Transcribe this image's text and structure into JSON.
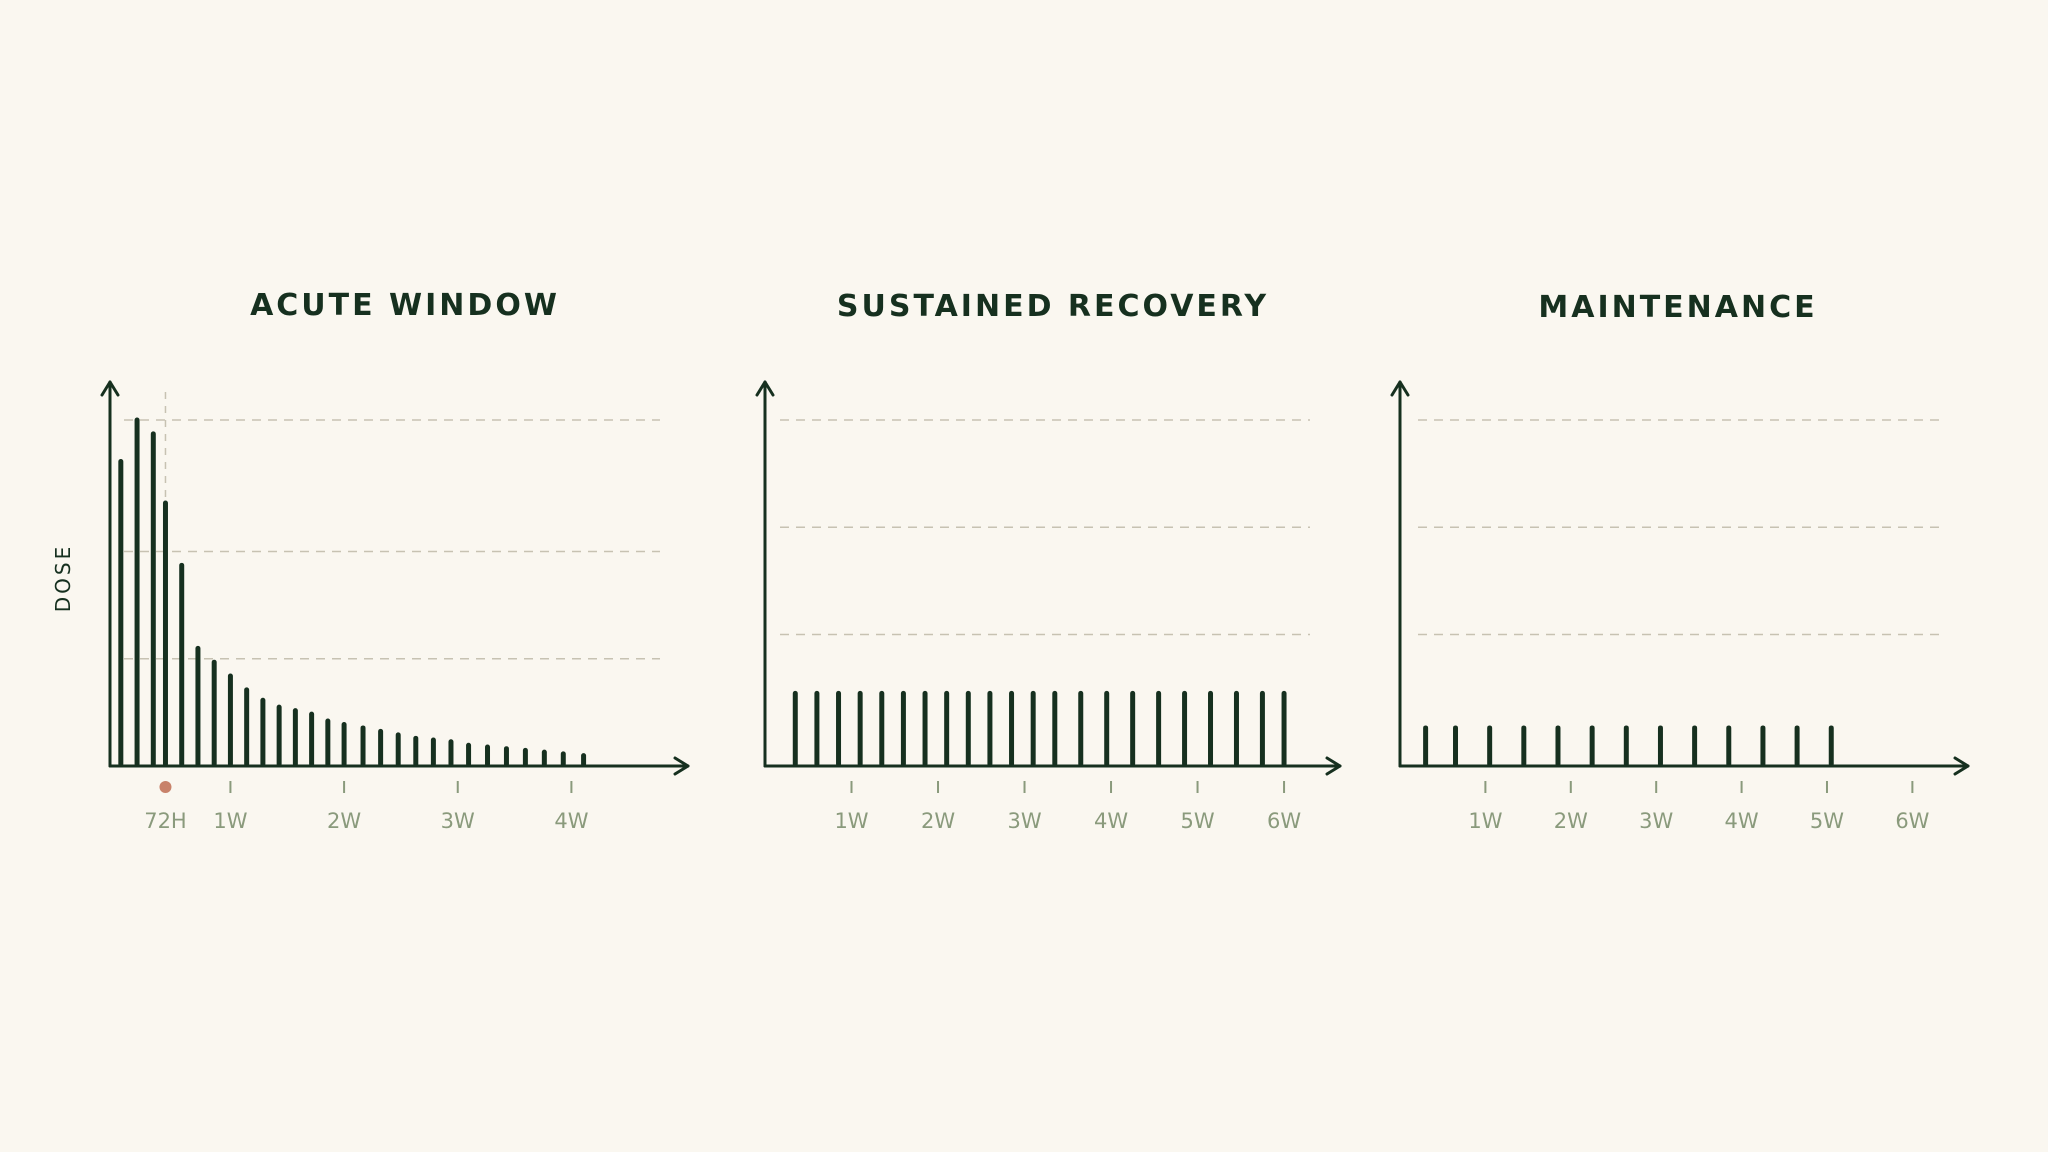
{
  "chart_data": [
    {
      "type": "bar",
      "title": "ACUTE WINDOW",
      "ylabel": "DOSE",
      "xlabel": "",
      "x_unit": "hours",
      "grid": "horizontal-dashed",
      "ylim": [
        0,
        100
      ],
      "gridlines": [
        31,
        62,
        100
      ],
      "xlim": [
        -10,
        800
      ],
      "tick_labels": [
        "72H",
        "1W",
        "2W",
        "3W",
        "4W"
      ],
      "tick_positions": [
        72,
        168,
        336,
        504,
        672
      ],
      "marker": {
        "x": 72,
        "label": "72H",
        "color": "#c8826a"
      },
      "x": [
        6,
        30,
        54,
        72,
        96,
        120,
        144,
        168,
        192,
        216,
        240,
        264,
        288,
        312,
        336,
        364,
        390,
        416,
        442,
        468,
        494,
        520,
        548,
        576,
        604,
        632,
        660,
        690
      ],
      "values": [
        88,
        100,
        96,
        76,
        58,
        34,
        30,
        26,
        22,
        19,
        17,
        16,
        15,
        13,
        12,
        11,
        10,
        9,
        8,
        7.5,
        7,
        6,
        5.5,
        5,
        4.5,
        4,
        3.5,
        3
      ],
      "series_color": "#16301f"
    },
    {
      "type": "bar",
      "title": "SUSTAINED RECOVERY",
      "ylabel": "",
      "xlabel": "",
      "x_unit": "weeks",
      "grid": "horizontal-dashed",
      "ylim": [
        0,
        100
      ],
      "gridlines": [
        38,
        69,
        100
      ],
      "xlim": [
        0,
        6.3
      ],
      "tick_labels": [
        "1W",
        "2W",
        "3W",
        "4W",
        "5W",
        "6W"
      ],
      "tick_positions": [
        1,
        2,
        3,
        4,
        5,
        6
      ],
      "x": [
        0.35,
        0.6,
        0.85,
        1.1,
        1.35,
        1.6,
        1.85,
        2.1,
        2.35,
        2.6,
        2.85,
        3.1,
        3.35,
        3.65,
        3.95,
        4.25,
        4.55,
        4.85,
        5.15,
        5.45,
        5.75,
        6.0
      ],
      "values": [
        21,
        21,
        21,
        21,
        21,
        21,
        21,
        21,
        21,
        21,
        21,
        21,
        21,
        21,
        21,
        21,
        21,
        21,
        21,
        21,
        21,
        21
      ],
      "series_color": "#16301f"
    },
    {
      "type": "bar",
      "title": "MAINTENANCE",
      "ylabel": "",
      "xlabel": "",
      "x_unit": "weeks",
      "grid": "horizontal-dashed",
      "ylim": [
        0,
        100
      ],
      "gridlines": [
        38,
        69,
        100
      ],
      "xlim": [
        0,
        6.3
      ],
      "tick_labels": [
        "1W",
        "2W",
        "3W",
        "4W",
        "5W",
        "6W"
      ],
      "tick_positions": [
        1,
        2,
        3,
        4,
        5,
        6
      ],
      "x": [
        0.3,
        0.65,
        1.05,
        1.45,
        1.85,
        2.25,
        2.65,
        3.05,
        3.45,
        3.85,
        4.25,
        4.65,
        5.05
      ],
      "values": [
        11,
        11,
        11,
        11,
        11,
        11,
        11,
        11,
        11,
        11,
        11,
        11,
        11
      ],
      "series_color": "#16301f"
    }
  ]
}
